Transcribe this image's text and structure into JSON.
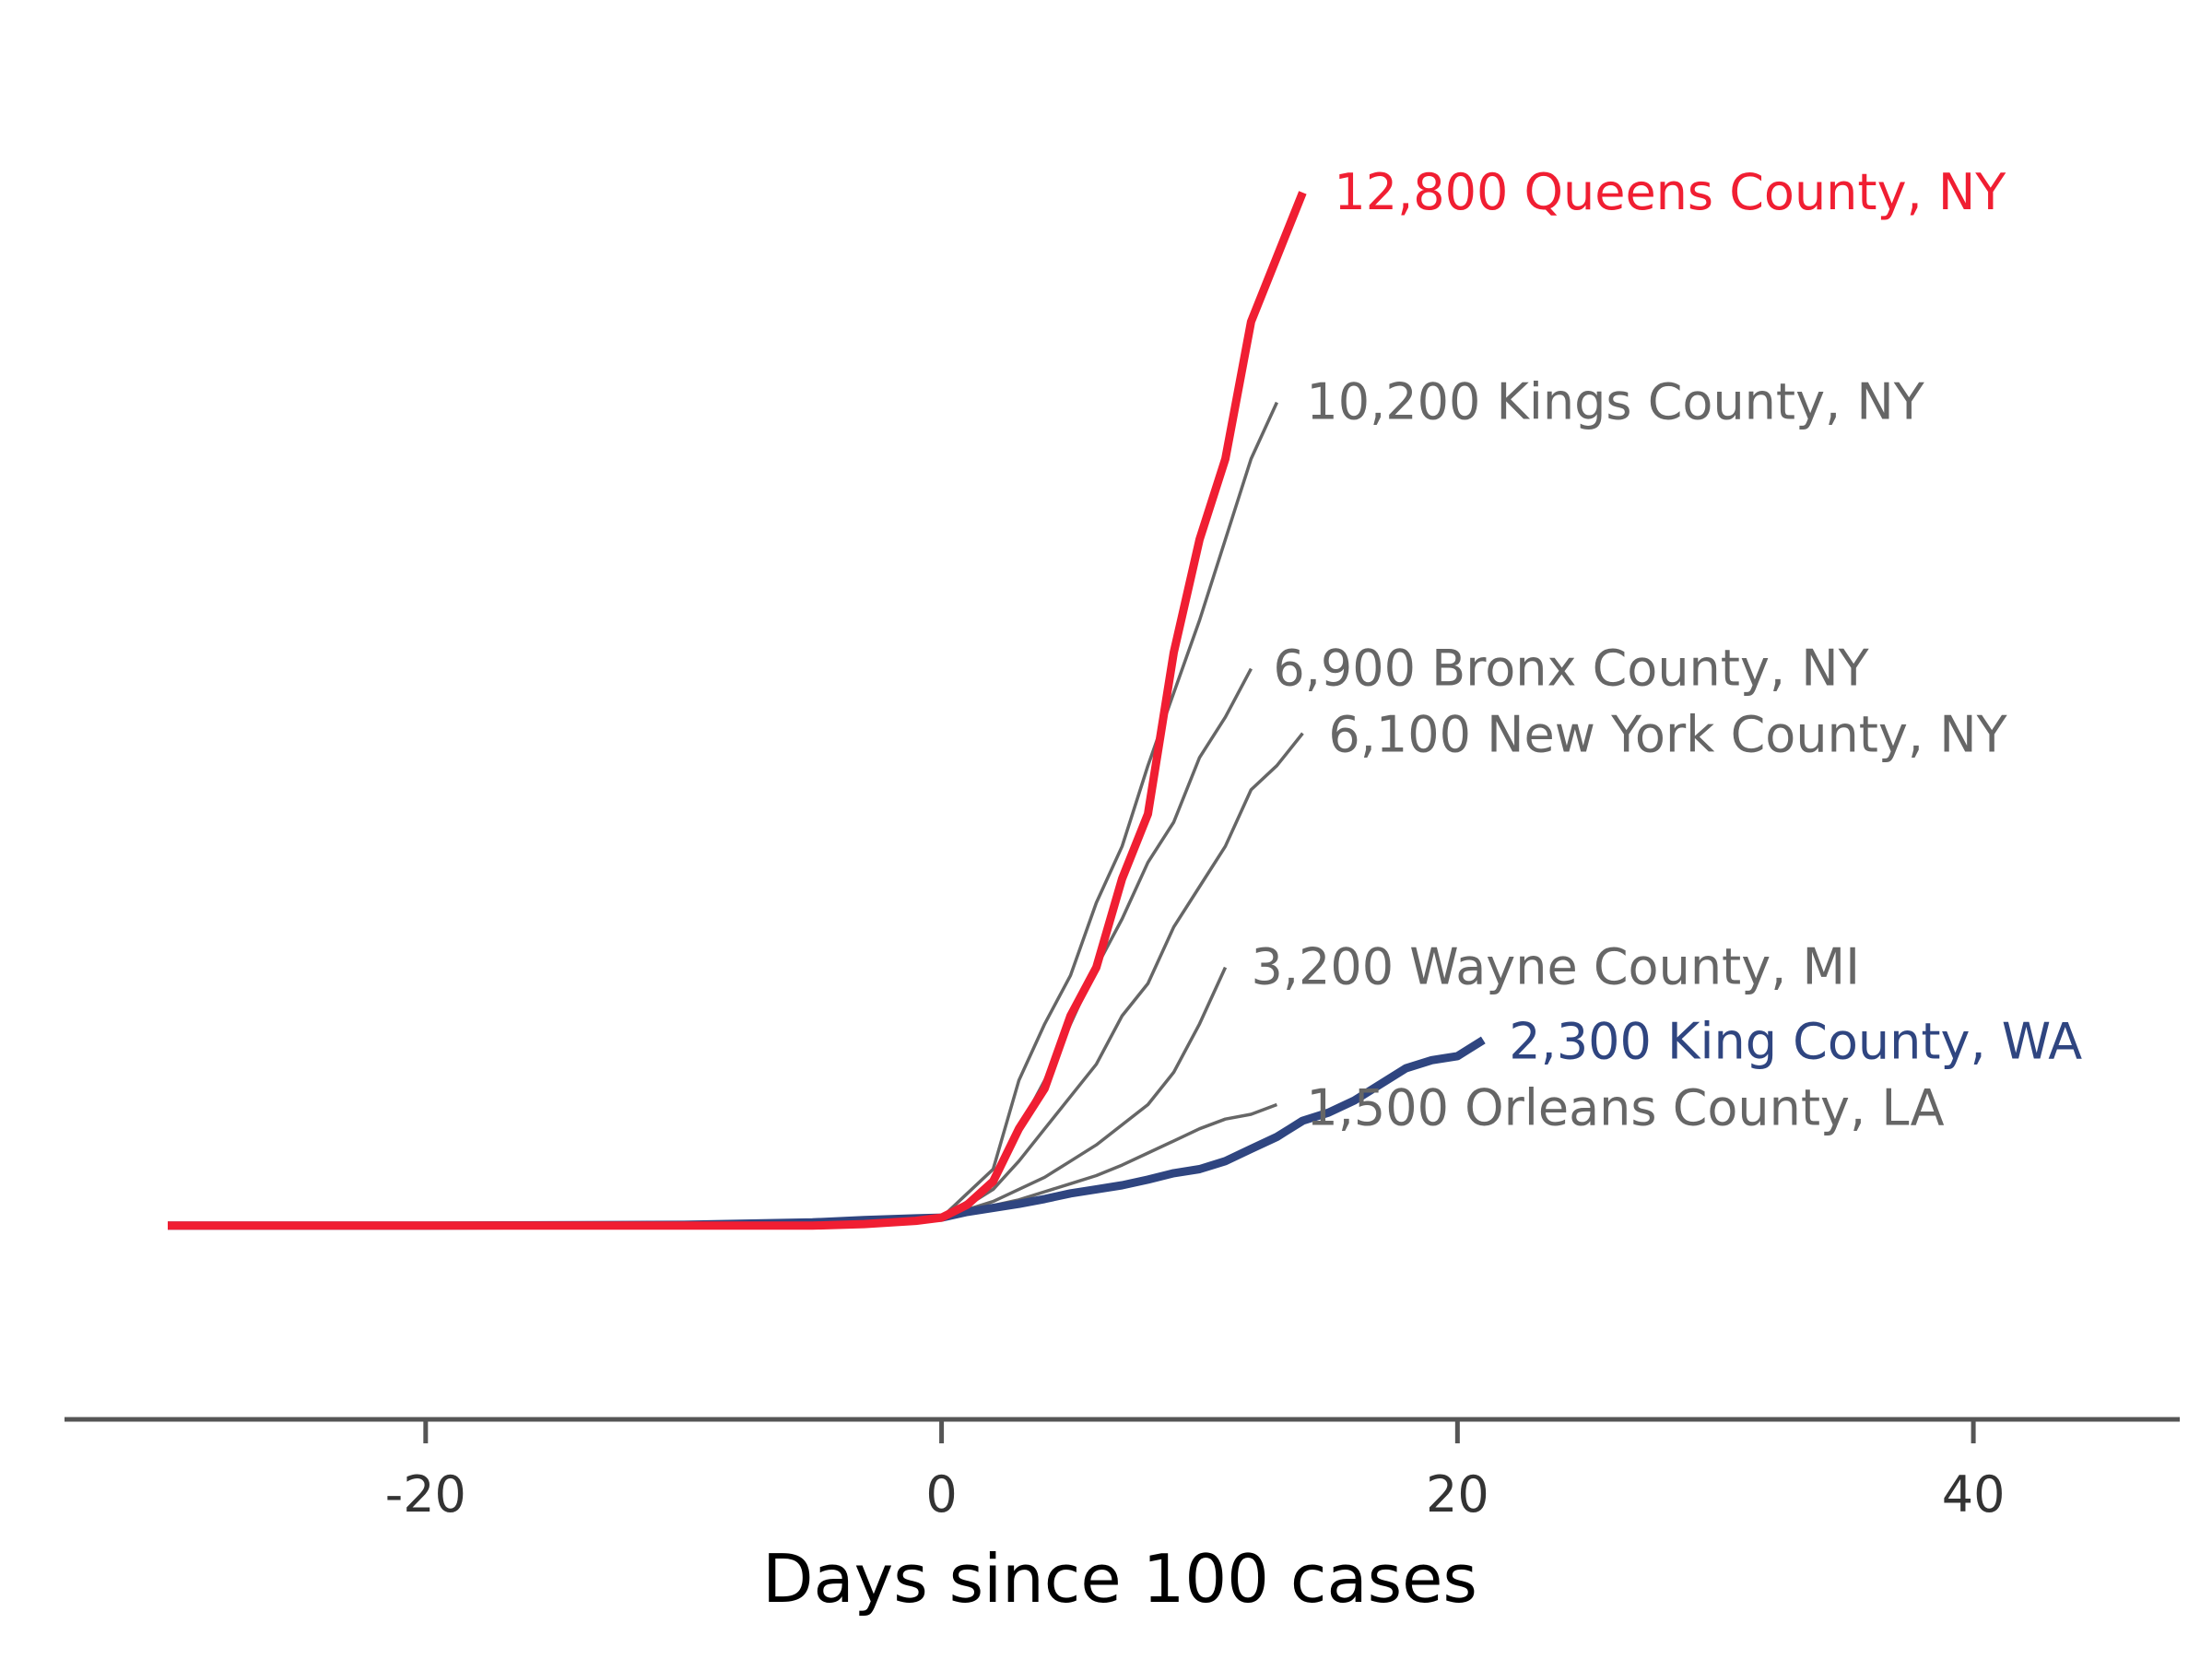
{
  "chart_data": {
    "type": "line",
    "title": "",
    "xlabel": "Days since 100 cases",
    "ylabel": "",
    "xlim": [
      -34,
      48
    ],
    "ylim": [
      -2400,
      14500
    ],
    "x_ticks": [
      -20,
      0,
      20,
      40
    ],
    "x_tick_labels": [
      "-20",
      "0",
      "20",
      "40"
    ],
    "grid": false,
    "legend": "none",
    "series": [
      {
        "name": "Kings County, NY",
        "value_label": "10,200",
        "label": "10,200  Kings County, NY",
        "color": "#666666",
        "emphasis": false,
        "x": [
          -30,
          -20,
          -10,
          -5,
          -3,
          -1,
          0,
          1,
          2,
          3,
          4,
          5,
          6,
          7,
          8,
          9,
          10,
          11,
          12,
          13
        ],
        "y": [
          0,
          0,
          10,
          30,
          50,
          75,
          100,
          400,
          700,
          1800,
          2500,
          3100,
          4000,
          4700,
          5700,
          6600,
          7500,
          8500,
          9500,
          10200
        ]
      },
      {
        "name": "Bronx County, NY",
        "value_label": "6,900",
        "label": "6,900  Bronx County, NY",
        "color": "#666666",
        "emphasis": false,
        "x": [
          -30,
          -20,
          -10,
          -5,
          -3,
          -1,
          0,
          1,
          2,
          3,
          4,
          5,
          6,
          7,
          8,
          9,
          10,
          11,
          12
        ],
        "y": [
          0,
          0,
          10,
          30,
          50,
          75,
          100,
          300,
          550,
          1200,
          1800,
          2500,
          3200,
          3800,
          4500,
          5000,
          5800,
          6300,
          6900
        ]
      },
      {
        "name": "New York County, NY",
        "value_label": "6,100",
        "label": "6,100  New York County, NY",
        "color": "#666666",
        "emphasis": false,
        "x": [
          -30,
          -20,
          -10,
          -5,
          -3,
          -1,
          0,
          1,
          2,
          3,
          4,
          5,
          6,
          7,
          8,
          9,
          10,
          11,
          12,
          13,
          14
        ],
        "y": [
          0,
          0,
          10,
          30,
          50,
          75,
          100,
          250,
          450,
          800,
          1200,
          1600,
          2000,
          2600,
          3000,
          3700,
          4200,
          4700,
          5400,
          5700,
          6100
        ]
      },
      {
        "name": "Wayne County, MI",
        "value_label": "3,200",
        "label": "3,200  Wayne County, MI",
        "color": "#666666",
        "emphasis": false,
        "x": [
          -30,
          -20,
          -10,
          -5,
          -3,
          -1,
          0,
          1,
          2,
          3,
          4,
          5,
          6,
          7,
          8,
          9,
          10,
          11
        ],
        "y": [
          0,
          0,
          10,
          30,
          50,
          75,
          100,
          200,
          300,
          450,
          600,
          800,
          1000,
          1250,
          1500,
          1900,
          2500,
          3200
        ]
      },
      {
        "name": "Orleans County, LA",
        "value_label": "1,500",
        "label": "1,500  Orleans County, LA",
        "color": "#666666",
        "emphasis": false,
        "x": [
          -30,
          -20,
          -10,
          -5,
          -3,
          -1,
          0,
          1,
          2,
          3,
          4,
          5,
          6,
          7,
          8,
          9,
          10,
          11,
          12,
          13
        ],
        "y": [
          0,
          0,
          10,
          30,
          50,
          75,
          100,
          180,
          250,
          320,
          420,
          520,
          620,
          750,
          900,
          1050,
          1200,
          1320,
          1380,
          1500
        ]
      },
      {
        "name": "King County, WA",
        "value_label": "2,300",
        "label": "2,300  King County, WA",
        "color": "#2F4580",
        "emphasis": true,
        "x": [
          -30,
          -20,
          -10,
          -5,
          -3,
          -1,
          0,
          1,
          2,
          3,
          4,
          5,
          6,
          7,
          8,
          9,
          10,
          11,
          12,
          13,
          14,
          15,
          16,
          17,
          18,
          19,
          20,
          21
        ],
        "y": [
          0,
          0,
          10,
          40,
          70,
          90,
          100,
          170,
          220,
          270,
          330,
          400,
          450,
          500,
          570,
          650,
          700,
          800,
          950,
          1100,
          1300,
          1400,
          1550,
          1750,
          1950,
          2050,
          2100,
          2300
        ]
      },
      {
        "name": "Queens County, NY",
        "value_label": "12,800",
        "label": "12,800  Queens County, NY",
        "color": "#F01E32",
        "emphasis": true,
        "x": [
          -30,
          -20,
          -10,
          -5,
          -3,
          -1,
          0,
          1,
          2,
          3,
          4,
          5,
          6,
          7,
          8,
          9,
          10,
          11,
          12,
          13,
          14
        ],
        "y": [
          0,
          0,
          0,
          0,
          20,
          60,
          100,
          260,
          550,
          1200,
          1700,
          2600,
          3200,
          4300,
          5100,
          7100,
          8500,
          9500,
          11200,
          12000,
          12800
        ]
      }
    ]
  }
}
